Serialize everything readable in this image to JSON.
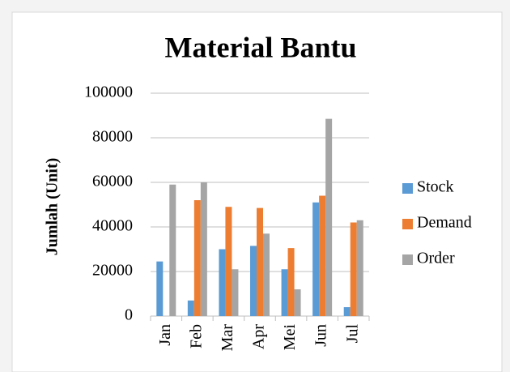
{
  "chart_data": {
    "type": "bar",
    "title": "Material Bantu",
    "ylabel": "Jumlah (Unit)",
    "categories": [
      "Jan",
      "Feb",
      "Mar",
      "Apr",
      "Mei",
      "Jun",
      "Jul"
    ],
    "series": [
      {
        "name": "Stock",
        "color": "#5b9bd5",
        "values": [
          24500,
          7000,
          30000,
          31500,
          21000,
          51000,
          4000
        ]
      },
      {
        "name": "Demand",
        "color": "#ed7d31",
        "values": [
          0,
          52000,
          49000,
          48500,
          30500,
          54000,
          42000
        ]
      },
      {
        "name": "Order",
        "color": "#a5a5a5",
        "values": [
          59000,
          60000,
          21000,
          37000,
          12000,
          88500,
          43000
        ]
      }
    ],
    "ylim": [
      0,
      100000
    ],
    "yticks": [
      0,
      20000,
      40000,
      60000,
      80000,
      100000
    ],
    "grid": true,
    "legend": "right"
  }
}
